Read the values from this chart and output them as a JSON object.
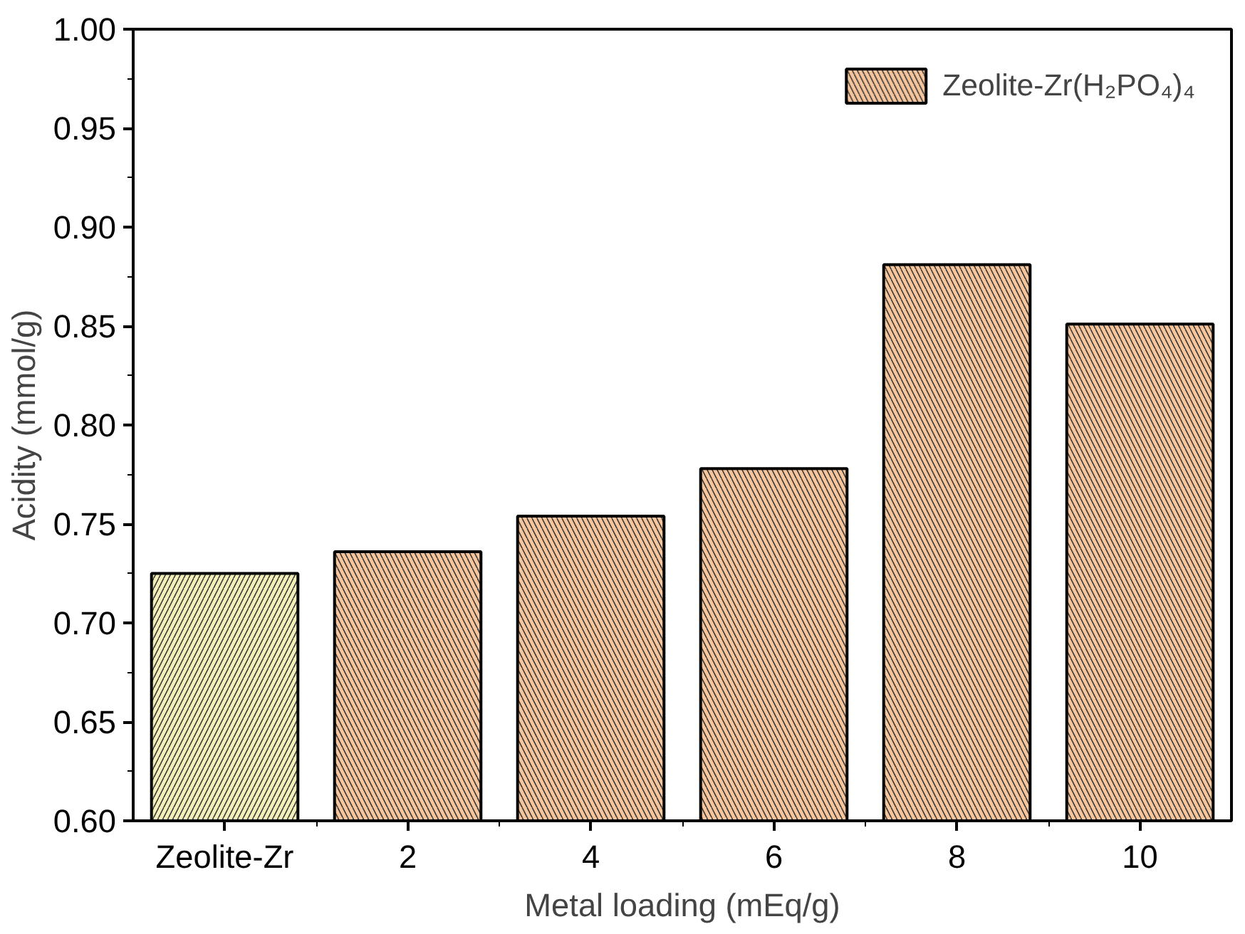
{
  "chart_data": {
    "type": "bar",
    "xlabel": "Metal loading (mEq/g)",
    "ylabel": "Acidity (mmol/g)",
    "categories": [
      "Zeolite-Zr",
      "2",
      "4",
      "6",
      "8",
      "10"
    ],
    "series": [
      {
        "color": "#f3efb9",
        "values": [
          0.725,
          null,
          null,
          null,
          null,
          null
        ]
      },
      {
        "name": "Zeolite-Zr(H₂PO₄)₄",
        "color": "#f6c59c",
        "values": [
          null,
          0.736,
          0.754,
          0.778,
          0.881,
          0.851
        ]
      }
    ],
    "ylim": [
      0.6,
      1.0
    ],
    "yticks": [
      {
        "value": 0.6,
        "label": "0.60"
      },
      {
        "value": 0.65,
        "label": "0.65"
      },
      {
        "value": 0.7,
        "label": "0.70"
      },
      {
        "value": 0.75,
        "label": "0.75"
      },
      {
        "value": 0.8,
        "label": "0.80"
      },
      {
        "value": 0.85,
        "label": "0.85"
      },
      {
        "value": 0.9,
        "label": "0.90"
      },
      {
        "value": 0.95,
        "label": "0.95"
      },
      {
        "value": 1.0,
        "label": "1.00"
      }
    ],
    "grid": false,
    "legend": "top right"
  }
}
